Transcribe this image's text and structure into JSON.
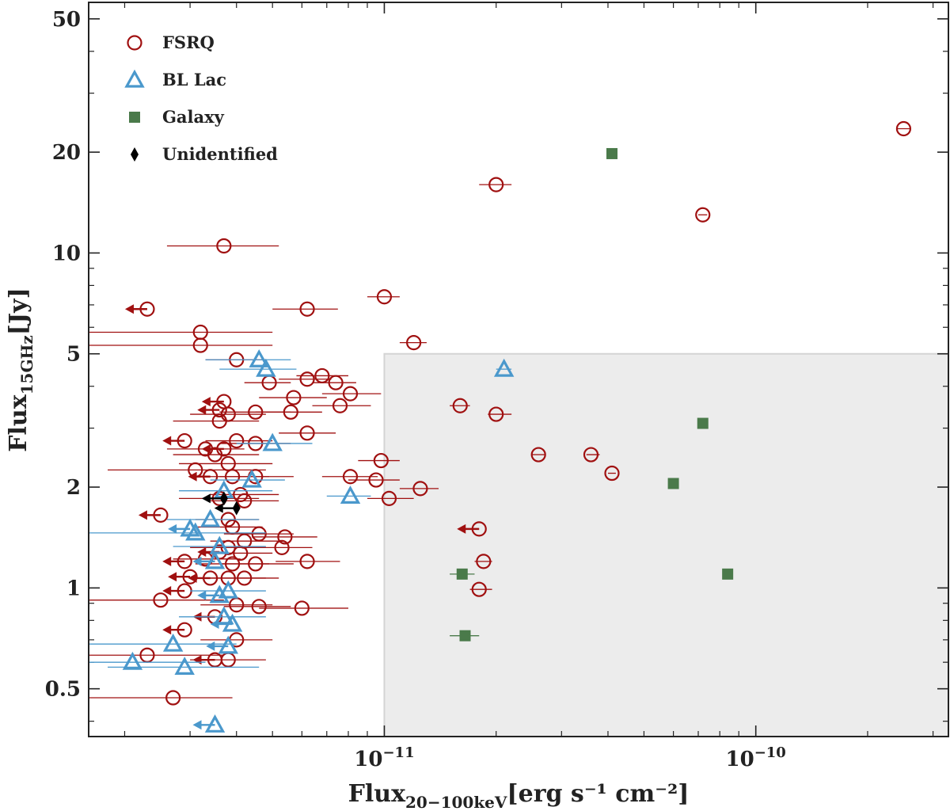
{
  "chart_data": {
    "type": "scatter",
    "x_scale": "log",
    "y_scale": "log",
    "xlim": [
      1.6e-12,
      3.3e-10
    ],
    "ylim": [
      0.36,
      56
    ],
    "x_label": {
      "main": "Flux",
      "sub": "20−100keV",
      "units": "[erg s⁻¹ cm⁻²]"
    },
    "y_label": {
      "main": "Flux",
      "sub": "15GHz",
      "units": "[Jy]"
    },
    "x_major_ticks": [
      {
        "value": 1e-11,
        "base": "10",
        "exp": "−11"
      },
      {
        "value": 1e-10,
        "base": "10",
        "exp": "−10"
      }
    ],
    "x_minor_ticks": [
      2e-12,
      3e-12,
      4e-12,
      5e-12,
      6e-12,
      7e-12,
      8e-12,
      9e-12,
      2e-11,
      3e-11,
      4e-11,
      5e-11,
      6e-11,
      7e-11,
      8e-11,
      9e-11,
      2e-10,
      3e-10
    ],
    "y_major_ticks": [
      {
        "value": 0.5,
        "label": "0.5"
      },
      {
        "value": 1,
        "label": "1"
      },
      {
        "value": 2,
        "label": "2"
      },
      {
        "value": 5,
        "label": "5"
      },
      {
        "value": 10,
        "label": "10"
      },
      {
        "value": 20,
        "label": "20"
      },
      {
        "value": 50,
        "label": "50"
      }
    ],
    "y_minor_ticks": [
      0.4,
      0.6,
      0.7,
      0.8,
      0.9,
      3,
      4,
      6,
      7,
      8,
      9,
      30,
      40
    ],
    "shaded_region": {
      "x_min": 1e-11,
      "y_max": 5
    },
    "legend": {
      "position": "top-left",
      "entries": [
        {
          "key": "fsrq",
          "label": "FSRQ"
        },
        {
          "key": "bllac",
          "label": "BL Lac"
        },
        {
          "key": "galaxy",
          "label": "Galaxy"
        },
        {
          "key": "unid",
          "label": "Unidentified"
        }
      ]
    },
    "series": [
      {
        "name": "FSRQ",
        "key": "fsrq",
        "marker": "circle",
        "color": "#a01010",
        "points": [
          [
            2.5e-10,
            23.5,
            2.4e-10,
            2.6e-10
          ],
          [
            7.2e-11,
            13,
            7e-11,
            7.4e-11
          ],
          [
            2e-11,
            16,
            1.8e-11,
            2.2e-11
          ],
          [
            3.7e-12,
            10.5,
            2.6e-12,
            5.2e-12
          ],
          [
            6.2e-12,
            6.8,
            5e-12,
            7.5e-12
          ],
          [
            1e-11,
            7.4,
            9e-12,
            1.1e-11
          ],
          [
            2.3e-12,
            6.8,
            null,
            null,
            "ul"
          ],
          [
            3.2e-12,
            5.8,
            1.6e-12,
            5e-12
          ],
          [
            3.2e-12,
            5.3,
            1.6e-12,
            5e-12
          ],
          [
            1.2e-11,
            5.4,
            1.1e-11,
            1.3e-11
          ],
          [
            4e-12,
            4.8,
            3.3e-12,
            4.8e-12
          ],
          [
            6.2e-12,
            4.2,
            5.2e-12,
            7.2e-12
          ],
          [
            6.8e-12,
            4.3,
            5.8e-12,
            8e-12
          ],
          [
            7.4e-12,
            4.1,
            6.4e-12,
            8.4e-12
          ],
          [
            4.9e-12,
            4.1,
            4.2e-12,
            5.6e-12
          ],
          [
            8.1e-12,
            3.8,
            6.8e-12,
            9.8e-12
          ],
          [
            5.7e-12,
            3.7,
            4.6e-12,
            7e-12
          ],
          [
            3.7e-12,
            3.6,
            null,
            null,
            "ul"
          ],
          [
            3.6e-12,
            3.4,
            null,
            null,
            "ul"
          ],
          [
            7.6e-12,
            3.5,
            6.4e-12,
            9.2e-12
          ],
          [
            5.6e-12,
            3.35,
            4.5e-12,
            6.8e-12
          ],
          [
            4.5e-12,
            3.35,
            3.6e-12,
            5.6e-12
          ],
          [
            3.8e-12,
            3.3,
            3e-12,
            4.8e-12
          ],
          [
            3.6e-12,
            3.15,
            2.7e-12,
            4.6e-12
          ],
          [
            1.6e-11,
            3.5,
            1.5e-11,
            1.7e-11
          ],
          [
            2e-11,
            3.3,
            1.9e-11,
            2.2e-11
          ],
          [
            6.2e-12,
            2.9,
            5.2e-12,
            7.4e-12
          ],
          [
            2.9e-12,
            2.75,
            null,
            null,
            "ul"
          ],
          [
            4e-12,
            2.75,
            3.3e-12,
            5e-12
          ],
          [
            4.5e-12,
            2.7,
            3.6e-12,
            5.6e-12
          ],
          [
            3.3e-12,
            2.6,
            2.6e-12,
            4.2e-12
          ],
          [
            3.5e-12,
            2.5,
            2.7e-12,
            4.6e-12
          ],
          [
            3.7e-12,
            2.6,
            null,
            null,
            "ul"
          ],
          [
            2.6e-11,
            2.5,
            2.5e-11,
            2.7e-11
          ],
          [
            3.6e-11,
            2.5,
            3.5e-11,
            3.8e-11
          ],
          [
            9.8e-12,
            2.4,
            8.5e-12,
            1.1e-11
          ],
          [
            3.8e-12,
            2.35,
            2.8e-12,
            5e-12
          ],
          [
            3.1e-12,
            2.25,
            1.8e-12,
            4.8e-12
          ],
          [
            3.4e-12,
            2.15,
            null,
            null,
            "ul"
          ],
          [
            3.9e-12,
            2.15,
            3.1e-12,
            4.9e-12
          ],
          [
            4.5e-12,
            2.15,
            3.6e-12,
            5.7e-12
          ],
          [
            8.1e-12,
            2.15,
            6.8e-12,
            9.6e-12
          ],
          [
            9.5e-12,
            2.1,
            8e-12,
            1.1e-11
          ],
          [
            4.1e-11,
            2.2,
            4e-11,
            4.2e-11
          ],
          [
            1.25e-11,
            1.98,
            1.1e-11,
            1.4e-11
          ],
          [
            4.1e-12,
            1.9,
            3.4e-12,
            5.2e-12
          ],
          [
            3.6e-12,
            1.85,
            2.8e-12,
            4.6e-12
          ],
          [
            4.2e-12,
            1.82,
            3.4e-12,
            5.2e-12
          ],
          [
            1.03e-11,
            1.85,
            9e-12,
            1.2e-11
          ],
          [
            2.5e-12,
            1.65,
            null,
            null,
            "ul"
          ],
          [
            3.8e-12,
            1.6,
            3.1e-12,
            4.6e-12
          ],
          [
            1.8e-11,
            1.5,
            null,
            null,
            "ul"
          ],
          [
            3.9e-12,
            1.52,
            3.1e-12,
            4.7e-12
          ],
          [
            4.6e-12,
            1.45,
            3.7e-12,
            5.7e-12
          ],
          [
            5.4e-12,
            1.42,
            4.4e-12,
            6.6e-12
          ],
          [
            5.3e-12,
            1.32,
            4.3e-12,
            6.4e-12
          ],
          [
            4.2e-12,
            1.38,
            3.4e-12,
            5.2e-12
          ],
          [
            3.8e-12,
            1.32,
            3e-12,
            4.8e-12
          ],
          [
            3.6e-12,
            1.28,
            null,
            null,
            "ul"
          ],
          [
            4.1e-12,
            1.27,
            3.3e-12,
            5e-12
          ],
          [
            3.3e-12,
            1.22,
            2.7e-12,
            4.1e-12
          ],
          [
            2.9e-12,
            1.2,
            null,
            null,
            "ul"
          ],
          [
            3.9e-12,
            1.18,
            3.1e-12,
            4.9e-12
          ],
          [
            4.5e-12,
            1.18,
            3.6e-12,
            5.7e-12
          ],
          [
            6.2e-12,
            1.2,
            5.1e-12,
            7.6e-12
          ],
          [
            1.85e-11,
            1.2,
            1.75e-11,
            1.95e-11
          ],
          [
            3e-12,
            1.08,
            null,
            null,
            "ul"
          ],
          [
            3.4e-12,
            1.07,
            null,
            null,
            "ul"
          ],
          [
            3.8e-12,
            1.07,
            3e-12,
            4.8e-12
          ],
          [
            4.2e-12,
            1.07,
            3.3e-12,
            5.2e-12
          ],
          [
            2.9e-12,
            0.98,
            null,
            null,
            "ul"
          ],
          [
            1.8e-11,
            0.99,
            1.7e-11,
            1.95e-11
          ],
          [
            2.5e-12,
            0.92,
            1.6e-12,
            3.7e-12
          ],
          [
            4e-12,
            0.89,
            3.2e-12,
            5e-12
          ],
          [
            4.6e-12,
            0.88,
            3.7e-12,
            5.6e-12
          ],
          [
            6e-12,
            0.87,
            4.6e-12,
            8e-12
          ],
          [
            3.5e-12,
            0.82,
            null,
            null,
            "ul"
          ],
          [
            2.9e-12,
            0.75,
            null,
            null,
            "ul"
          ],
          [
            4e-12,
            0.7,
            3.2e-12,
            5e-12
          ],
          [
            2.3e-12,
            0.63,
            1.6e-12,
            3.7e-12
          ],
          [
            3.5e-12,
            0.61,
            null,
            null,
            "ul"
          ],
          [
            3.8e-12,
            0.61,
            3e-12,
            4.8e-12
          ],
          [
            2.7e-12,
            0.47,
            1.6e-12,
            3.9e-12
          ]
        ]
      },
      {
        "name": "BL Lac",
        "key": "bllac",
        "marker": "triangle",
        "color": "#4a98cc",
        "points": [
          [
            4.6e-12,
            4.8,
            3.3e-12,
            5.6e-12
          ],
          [
            4.8e-12,
            4.5,
            3.6e-12,
            5.8e-12
          ],
          [
            2.1e-11,
            4.5,
            2e-11,
            2.2e-11
          ],
          [
            5e-12,
            2.7,
            4e-12,
            6.4e-12
          ],
          [
            4.4e-12,
            2.1,
            3.4e-12,
            5.4e-12
          ],
          [
            3.7e-12,
            1.95,
            2.8e-12,
            5e-12
          ],
          [
            8.1e-12,
            1.88,
            7e-12,
            9.2e-12
          ],
          [
            3.4e-12,
            1.6,
            2.6e-12,
            4.6e-12
          ],
          [
            3e-12,
            1.5,
            null,
            null,
            "ul"
          ],
          [
            3.1e-12,
            1.46,
            1.6e-12,
            4.8e-12
          ],
          [
            3.6e-12,
            1.33,
            2.7e-12,
            4.8e-12
          ],
          [
            3.5e-12,
            1.2,
            null,
            null,
            "ul"
          ],
          [
            3.8e-12,
            0.98,
            3e-12,
            4.8e-12
          ],
          [
            3.6e-12,
            0.95,
            null,
            null,
            "ul"
          ],
          [
            3.7e-12,
            0.82,
            2.8e-12,
            4.8e-12
          ],
          [
            3.9e-12,
            0.78,
            null,
            null,
            "ul"
          ],
          [
            2.7e-12,
            0.68,
            1.6e-12,
            4e-12
          ],
          [
            3.8e-12,
            0.67,
            null,
            null,
            "ul"
          ],
          [
            2.1e-12,
            0.6,
            1.6e-12,
            3.3e-12
          ],
          [
            2.9e-12,
            0.58,
            1.8e-12,
            4.6e-12
          ],
          [
            3.5e-12,
            0.39,
            null,
            null,
            "ul"
          ]
        ]
      },
      {
        "name": "Galaxy",
        "key": "galaxy",
        "marker": "square",
        "color": "#4a7a4a",
        "points": [
          [
            4.1e-11,
            19.8,
            4e-11,
            4.2e-11
          ],
          [
            7.2e-11,
            3.1,
            7.1e-11,
            7.3e-11
          ],
          [
            6e-11,
            2.05,
            5.9e-11,
            6.1e-11
          ],
          [
            8.4e-11,
            1.1,
            8.3e-11,
            8.5e-11
          ],
          [
            1.62e-11,
            1.1,
            1.5e-11,
            1.75e-11
          ],
          [
            1.65e-11,
            0.72,
            1.5e-11,
            1.8e-11
          ]
        ]
      },
      {
        "name": "Unidentified",
        "key": "unid",
        "marker": "diamond",
        "color": "#000000",
        "points": [
          [
            3.7e-12,
            1.85,
            null,
            null,
            "ul"
          ],
          [
            4e-12,
            1.73,
            null,
            null,
            "ul"
          ]
        ]
      }
    ]
  }
}
